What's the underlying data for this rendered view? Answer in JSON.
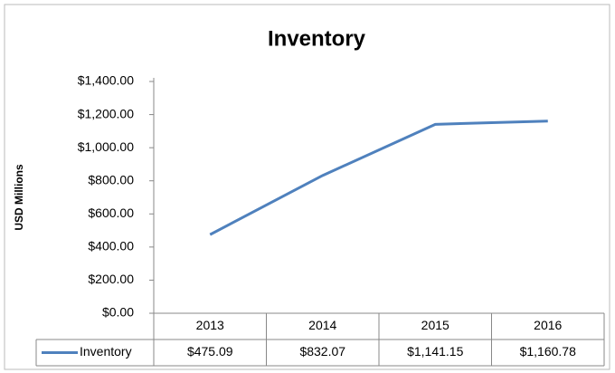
{
  "chart_data": {
    "type": "line",
    "title": "Inventory",
    "y_label": "USD Millions",
    "categories": [
      "2013",
      "2014",
      "2015",
      "2016"
    ],
    "series": [
      {
        "name": "Inventory",
        "color": "#4f81bd",
        "values": [
          475.09,
          832.07,
          1141.15,
          1160.78
        ],
        "value_labels": [
          "$475.09",
          "$832.07",
          "$1,141.15",
          "$1,160.78"
        ]
      }
    ],
    "ylim": [
      0,
      1400
    ],
    "yticks": [
      {
        "value": 0,
        "label": "$0.00"
      },
      {
        "value": 200,
        "label": "$200.00"
      },
      {
        "value": 400,
        "label": "$400.00"
      },
      {
        "value": 600,
        "label": "$600.00"
      },
      {
        "value": 800,
        "label": "$800.00"
      },
      {
        "value": 1000,
        "label": "$1,000.00"
      },
      {
        "value": 1200,
        "label": "$1,200.00"
      },
      {
        "value": 1400,
        "label": "$1,400.00"
      }
    ],
    "grid": false,
    "data_table": true
  }
}
